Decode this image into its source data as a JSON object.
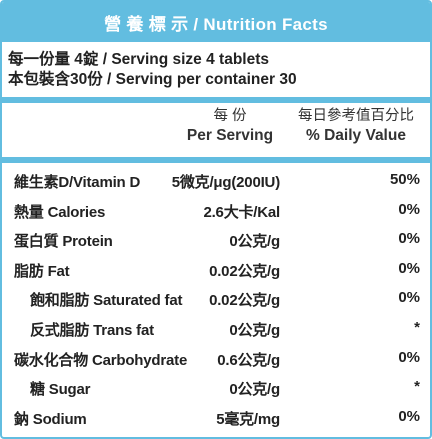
{
  "header": {
    "title": "營 養 標 示 / Nutrition Facts"
  },
  "serving": {
    "size": "每一份量  4錠 / Serving size 4 tablets",
    "per_container": "本包裝含30份 / Serving per container 30"
  },
  "columns": {
    "per_serving_zh": "每 份",
    "per_serving_en": "Per Serving",
    "daily_value_zh": "每日參考值百分比",
    "daily_value_en": "% Daily Value"
  },
  "nutrients": [
    {
      "name": "維生素D/Vitamin D",
      "amount": "5微克/μg(200IU)",
      "dv": "50%",
      "indent": 0
    },
    {
      "name": "熱量 Calories",
      "amount": "2.6大卡/Kal",
      "dv": "0%",
      "indent": 0
    },
    {
      "name": "蛋白質 Protein",
      "amount": "0公克/g",
      "dv": "0%",
      "indent": 0
    },
    {
      "name": "脂肪 Fat",
      "amount": "0.02公克/g",
      "dv": "0%",
      "indent": 0
    },
    {
      "name": "飽和脂肪 Saturated fat",
      "amount": "0.02公克/g",
      "dv": "0%",
      "indent": 1
    },
    {
      "name": "反式脂肪 Trans fat",
      "amount": "0公克/g",
      "dv": "*",
      "indent": 1
    },
    {
      "name": "碳水化合物 Carbohydrate",
      "amount": "0.6公克/g",
      "dv": "0%",
      "indent": 0
    },
    {
      "name": "糖 Sugar",
      "amount": "0公克/g",
      "dv": "*",
      "indent": 1
    },
    {
      "name": "鈉 Sodium",
      "amount": "5毫克/mg",
      "dv": "0%",
      "indent": 0
    }
  ],
  "colors": {
    "accent": "#62bde0",
    "text": "#222222",
    "background": "#ffffff"
  }
}
